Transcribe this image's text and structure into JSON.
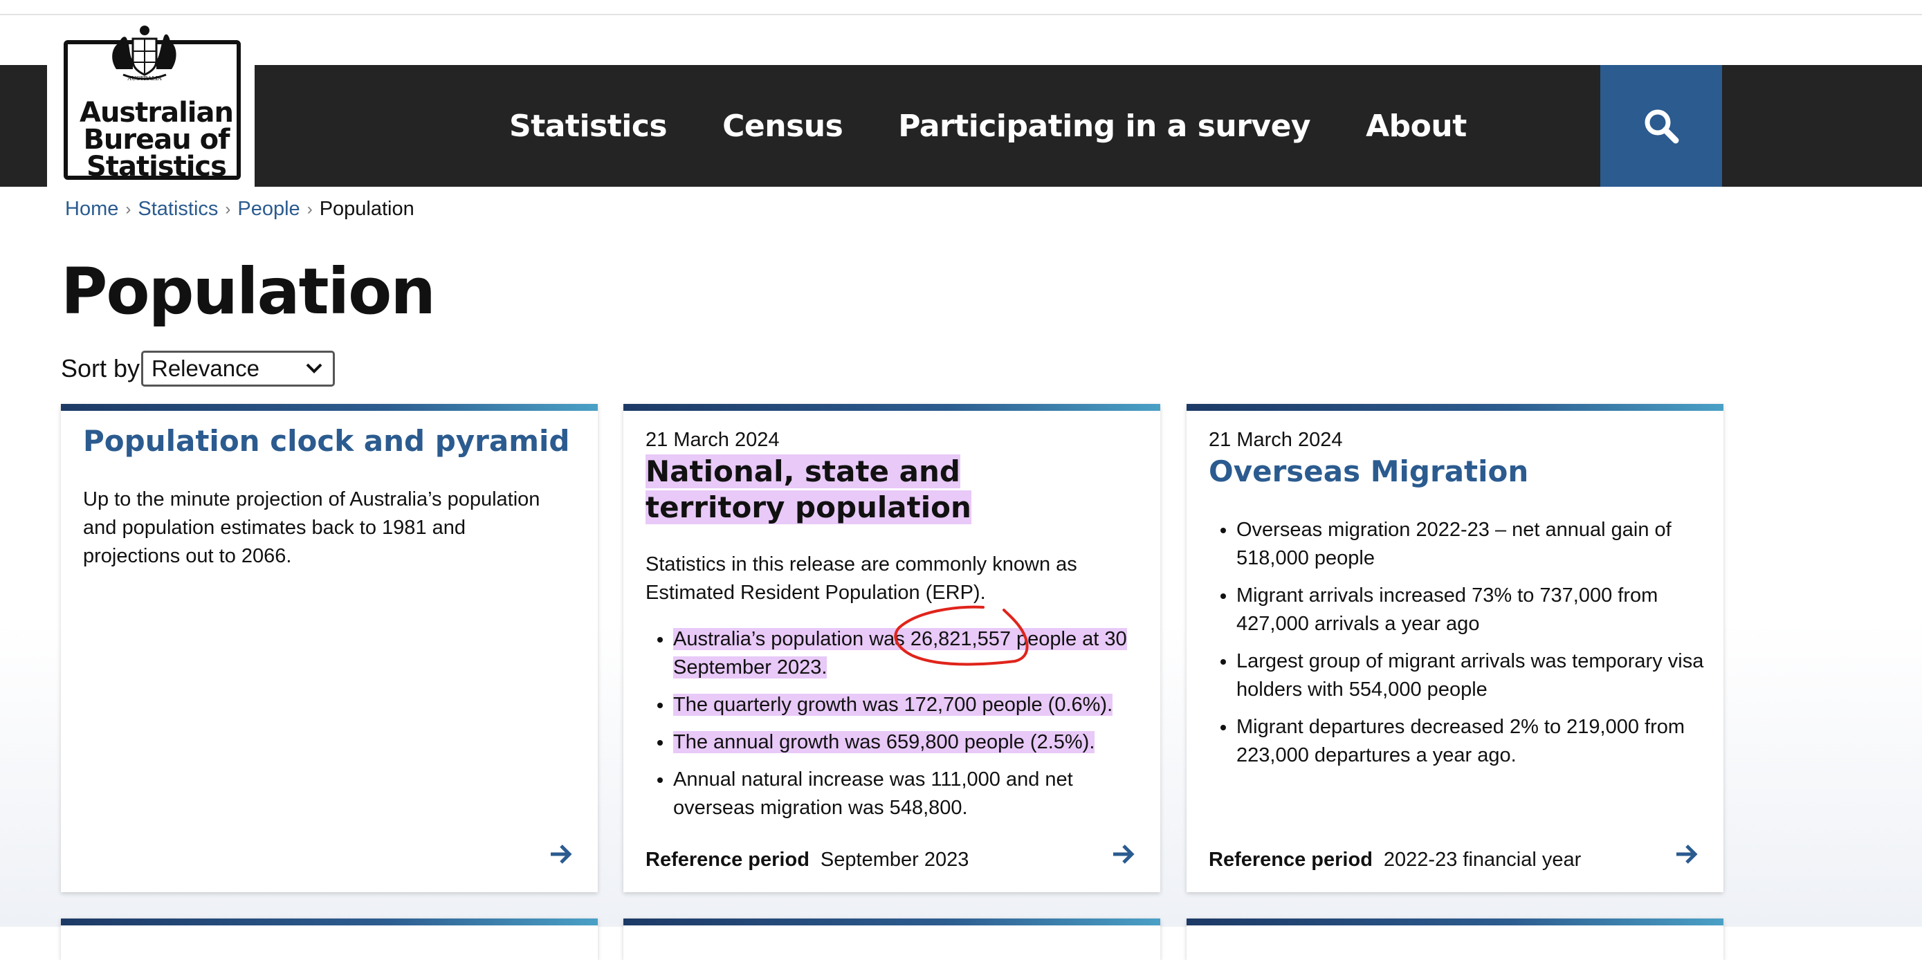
{
  "header": {
    "logo_lines": [
      "Australian",
      "Bureau of",
      "Statistics"
    ],
    "crest_text": "AUSTRALIA",
    "nav": [
      "Statistics",
      "Census",
      "Participating in a survey",
      "About"
    ],
    "search_icon": "search-icon"
  },
  "breadcrumb": {
    "items": [
      "Home",
      "Statistics",
      "People"
    ],
    "current": "Population"
  },
  "page": {
    "title": "Population",
    "sort_label": "Sort by",
    "sort_value": "Relevance"
  },
  "cards": [
    {
      "title": "Population clock and pyramid",
      "description": "Up to the minute projection of Australia’s population and population estimates back to 1981 and projections out to 2066."
    },
    {
      "date": "21 March 2024",
      "title": "National, state and territory population",
      "description": "Statistics in this release are commonly known as Estimated Resident Population (ERP).",
      "bullets": [
        "Australia’s population was 26,821,557 people at 30 September 2023.",
        "The quarterly growth was 172,700 people (0.6%).",
        "The annual growth was 659,800 people (2.5%).",
        "Annual natural increase was 111,000 and net overseas migration was 548,800."
      ],
      "ref_label": "Reference period",
      "ref_value": "September 2023"
    },
    {
      "date": "21 March 2024",
      "title": "Overseas Migration",
      "bullets": [
        "Overseas migration 2022-23 – net annual gain of 518,000 people",
        "Migrant arrivals increased 73% to 737,000 from 427,000 arrivals a year ago",
        "Largest group of migrant arrivals was temporary visa holders with 554,000 people",
        "Migrant departures decreased 2% to 219,000 from 223,000 departures a year ago."
      ],
      "ref_label": "Reference period",
      "ref_value": "2022-23 financial year"
    }
  ],
  "colors": {
    "nav_bg": "#242424",
    "search_bg": "#2b5b8f",
    "link": "#2b5b8f",
    "highlight": "#e8c9f7",
    "annotation": "#e0241b"
  }
}
